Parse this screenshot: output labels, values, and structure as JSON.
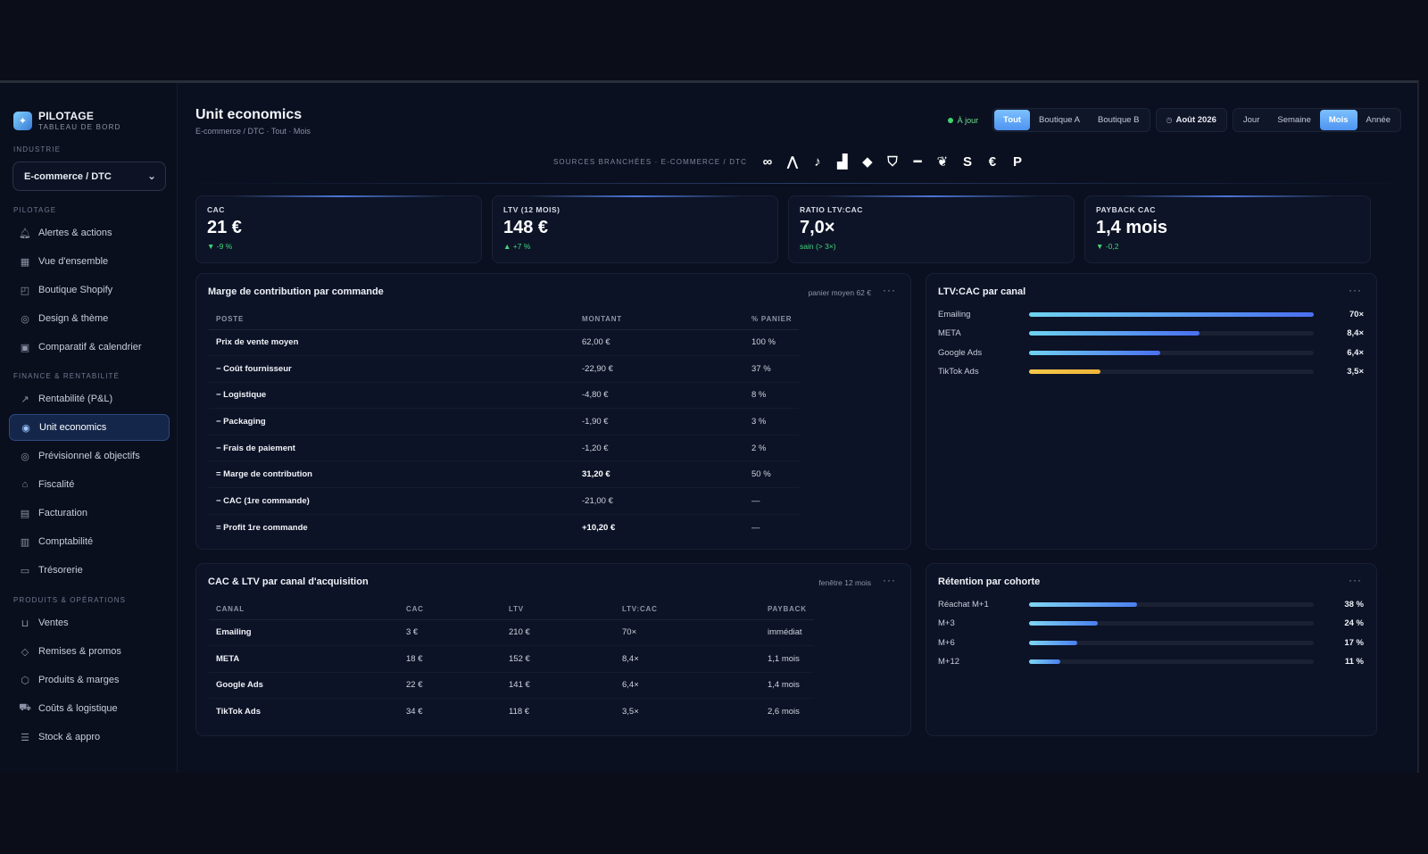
{
  "brand": {
    "title": "PILOTAGE",
    "subtitle": "TABLEAU DE BORD"
  },
  "sidebar": {
    "industry_label": "INDUSTRIE",
    "industry_value": "E-commerce / DTC",
    "sections": [
      {
        "label": "PILOTAGE"
      },
      {
        "label": "FINANCE & RENTABILITÉ"
      },
      {
        "label": "PRODUITS & OPÉRATIONS"
      }
    ],
    "items": [
      {
        "label": "Alertes & actions",
        "icon": "bell-icon"
      },
      {
        "label": "Vue d'ensemble",
        "icon": "grid-icon"
      },
      {
        "label": "Boutique Shopify",
        "icon": "bag-icon"
      },
      {
        "label": "Design & thème",
        "icon": "palette-icon"
      },
      {
        "label": "Comparatif & calendrier",
        "icon": "calendar-icon"
      },
      {
        "label": "Rentabilité (P&L)",
        "icon": "trend-icon"
      },
      {
        "label": "Unit economics",
        "icon": "target-icon"
      },
      {
        "label": "Prévisionnel & objectifs",
        "icon": "goal-icon"
      },
      {
        "label": "Fiscalité",
        "icon": "bank-icon"
      },
      {
        "label": "Facturation",
        "icon": "invoice-icon"
      },
      {
        "label": "Comptabilité",
        "icon": "ledger-icon"
      },
      {
        "label": "Trésorerie",
        "icon": "wallet-icon"
      },
      {
        "label": "Ventes",
        "icon": "cart-icon"
      },
      {
        "label": "Remises & promos",
        "icon": "tag-icon"
      },
      {
        "label": "Produits & marges",
        "icon": "box-icon"
      },
      {
        "label": "Coûts & logistique",
        "icon": "truck-icon"
      },
      {
        "label": "Stock & appro",
        "icon": "stack-icon"
      }
    ]
  },
  "header": {
    "title": "Unit economics",
    "breadcrumb": "E-commerce / DTC · Tout · Mois",
    "status": "À jour",
    "scope_options": [
      "Tout",
      "Boutique A",
      "Boutique B"
    ],
    "scope_selected": "Tout",
    "period_label": "Août 2026",
    "granularity_options": [
      "Jour",
      "Semaine",
      "Mois",
      "Année"
    ],
    "granularity_selected": "Mois"
  },
  "sources": {
    "label": "SOURCES BRANCHÉES · E-COMMERCE / DTC",
    "icons": [
      "meta-icon",
      "google-ads-icon",
      "tiktok-icon",
      "analytics-icon",
      "klaviyo-icon",
      "shopify-icon",
      "bar-icon",
      "mailchimp-icon",
      "stripe-icon",
      "cashflow-icon",
      "paypal-icon"
    ]
  },
  "kpis": [
    {
      "label": "CAC",
      "value": "21 €",
      "delta": "▼ -9 %",
      "delta_color": "#42d67a"
    },
    {
      "label": "LTV (12 MOIS)",
      "value": "148 €",
      "delta": "▲ +7 %",
      "delta_color": "#42d67a"
    },
    {
      "label": "RATIO LTV:CAC",
      "value": "7,0×",
      "delta": "sain (> 3×)",
      "delta_color": "#42d67a"
    },
    {
      "label": "PAYBACK CAC",
      "value": "1,4 mois",
      "delta": "▼ -0,2",
      "delta_color": "#42d67a"
    }
  ],
  "contribution": {
    "title": "Marge de contribution par commande",
    "meta": "panier moyen 62 €",
    "columns": [
      "POSTE",
      "MONTANT",
      "% PANIER"
    ],
    "rows": [
      [
        "Prix de vente moyen",
        "62,00 €",
        "100 %"
      ],
      [
        "− Coût fournisseur",
        "-22,90 €",
        "37 %"
      ],
      [
        "− Logistique",
        "-4,80 €",
        "8 %"
      ],
      [
        "− Packaging",
        "-1,90 €",
        "3 %"
      ],
      [
        "− Frais de paiement",
        "-1,20 €",
        "2 %"
      ],
      [
        "= Marge de contribution",
        "31,20 €",
        "50 %"
      ],
      [
        "− CAC (1re commande)",
        "-21,00 €",
        "—"
      ],
      [
        "= Profit 1re commande",
        "+10,20 €",
        "—"
      ]
    ]
  },
  "ltv_cac": {
    "title": "LTV:CAC par canal",
    "rows": [
      {
        "label": "Emailing",
        "value": "70×",
        "fraction": 1.0,
        "color_from": "#6fd3f0",
        "color_to": "#4a6ff0"
      },
      {
        "label": "META",
        "value": "8,4×",
        "fraction": 0.6,
        "color_from": "#6fd3f0",
        "color_to": "#4a6ff0"
      },
      {
        "label": "Google Ads",
        "value": "6,4×",
        "fraction": 0.46,
        "color_from": "#6fd3f0",
        "color_to": "#4a6ff0"
      },
      {
        "label": "TikTok Ads",
        "value": "3,5×",
        "fraction": 0.25,
        "color_from": "#f7c84a",
        "color_to": "#f0b43a"
      }
    ]
  },
  "acquisition": {
    "title": "CAC & LTV par canal d'acquisition",
    "meta": "fenêtre 12 mois",
    "columns": [
      "CANAL",
      "CAC",
      "LTV",
      "LTV:CAC",
      "PAYBACK"
    ],
    "rows": [
      [
        "Emailing",
        "3 €",
        "210 €",
        "70×",
        "immédiat"
      ],
      [
        "META",
        "18 €",
        "152 €",
        "8,4×",
        "1,1 mois"
      ],
      [
        "Google Ads",
        "22 €",
        "141 €",
        "6,4×",
        "1,4 mois"
      ],
      [
        "TikTok Ads",
        "34 €",
        "118 €",
        "3,5×",
        "2,6 mois"
      ]
    ]
  },
  "retention": {
    "title": "Rétention par cohorte",
    "rows": [
      {
        "label": "Réachat M+1",
        "value": "38 %",
        "fraction": 0.38
      },
      {
        "label": "M+3",
        "value": "24 %",
        "fraction": 0.24
      },
      {
        "label": "M+6",
        "value": "17 %",
        "fraction": 0.17
      },
      {
        "label": "M+12",
        "value": "11 %",
        "fraction": 0.11
      }
    ]
  },
  "colors": {
    "accent": "#5aa8ff",
    "positive": "#42d67a",
    "background": "#0a1020"
  }
}
